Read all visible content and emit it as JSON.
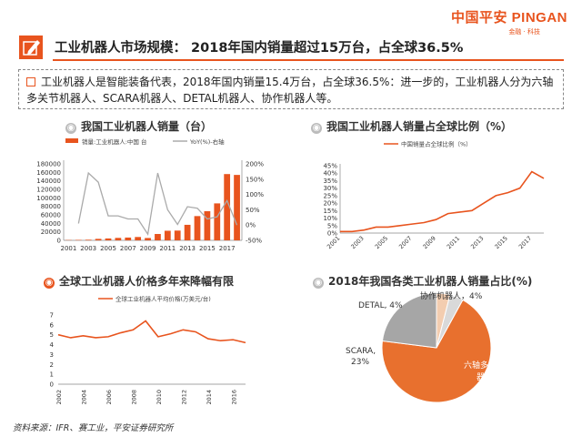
{
  "logo": {
    "main": "中国平安 PINGAN",
    "sub": "金融 · 科技"
  },
  "header": {
    "title": "工业机器人市场规模：  2018年国内销量超过15万台，占全球36.5%"
  },
  "summary": "工业机器人是智能装备代表，2018年国内销量15.4万台，占全球36.5%：进一步的，工业机器人分为六轴多关节机器人、SCARA机器人、DETAL机器人、协作机器人等。",
  "sections": {
    "domestic_sales": "我国工业机器人销量（台）",
    "global_share": "我国工业机器人销量占全球比例（%）",
    "price": "全球工业机器人价格多年来降幅有限",
    "category_share": "2018年我国各类工业机器人销量占比(%)"
  },
  "source": "资料来源：IFR、赛工业，平安证券研究所",
  "colors": {
    "accent": "#e8541e",
    "gray": "#aaaaaa",
    "pie_light": "#f3cdb0"
  },
  "chart_data": [
    {
      "type": "bar",
      "legend": [
        "销量:工业机器人:中国  台",
        "YoY(%)-右轴"
      ],
      "x": [
        2001,
        2002,
        2003,
        2004,
        2005,
        2006,
        2007,
        2008,
        2009,
        2010,
        2011,
        2012,
        2013,
        2014,
        2015,
        2016,
        2017,
        2018
      ],
      "xticks": [
        "2001",
        "2003",
        "2005",
        "2007",
        "2009",
        "2011",
        "2013",
        "2015",
        "2017"
      ],
      "series": [
        {
          "name": "销量:工业机器人:中国  台",
          "axis": "left",
          "values": [
            680,
            1000,
            1450,
            3500,
            4460,
            5770,
            6580,
            7880,
            5530,
            14980,
            22580,
            22990,
            36560,
            57100,
            68600,
            87000,
            156000,
            154000
          ]
        },
        {
          "name": "YoY(%)-右轴",
          "axis": "right",
          "values": [
            null,
            5,
            170,
            140,
            30,
            30,
            20,
            20,
            -30,
            170,
            50,
            2,
            60,
            55,
            20,
            27,
            80,
            0
          ]
        }
      ],
      "ylim": [
        0,
        180000
      ],
      "yticks": [
        "0",
        "20000",
        "40000",
        "60000",
        "80000",
        "100000",
        "120000",
        "140000",
        "160000",
        "180000"
      ],
      "y2lim": [
        -50,
        200
      ],
      "y2ticks": [
        "-50%",
        "0%",
        "50%",
        "100%",
        "150%",
        "200%"
      ]
    },
    {
      "type": "line",
      "legend": [
        "中国销量占全球比例（%）"
      ],
      "x": [
        2001,
        2002,
        2003,
        2004,
        2005,
        2006,
        2007,
        2008,
        2009,
        2010,
        2011,
        2012,
        2013,
        2014,
        2015,
        2016,
        2017,
        2018
      ],
      "xticks": [
        "2001",
        "2003",
        "2005",
        "2007",
        "2009",
        "2011",
        "2013",
        "2015",
        "2017"
      ],
      "series": [
        {
          "name": "中国销量占全球比例（%）",
          "values": [
            1,
            1,
            2,
            4,
            4,
            5,
            6,
            7,
            9,
            13,
            14,
            15,
            20,
            25,
            27,
            30,
            41,
            36.5
          ]
        }
      ],
      "ylim": [
        0,
        45
      ],
      "yticks": [
        "0%",
        "5%",
        "10%",
        "15%",
        "20%",
        "25%",
        "30%",
        "35%",
        "40%",
        "45%"
      ]
    },
    {
      "type": "line",
      "legend": [
        "全球工业机器人平均价格(万美元/台)"
      ],
      "x": [
        2002,
        2003,
        2004,
        2005,
        2006,
        2007,
        2008,
        2009,
        2010,
        2011,
        2012,
        2013,
        2014,
        2015,
        2016,
        2017
      ],
      "xticks": [
        "2002",
        "2004",
        "2006",
        "2008",
        "2010",
        "2012",
        "2014",
        "2016"
      ],
      "series": [
        {
          "name": "全球工业机器人平均价格(万美元/台)",
          "values": [
            5.0,
            4.7,
            4.9,
            4.7,
            4.8,
            5.2,
            5.5,
            6.4,
            4.8,
            5.1,
            5.5,
            5.3,
            4.6,
            4.4,
            4.5,
            4.2
          ]
        }
      ],
      "ylim": [
        0,
        7
      ],
      "yticks": [
        "0",
        "1",
        "2",
        "3",
        "4",
        "5",
        "6",
        "7"
      ]
    },
    {
      "type": "pie",
      "slices": [
        {
          "label": "六轴多关节机器人、69%",
          "value": 69,
          "color": "#e8702e"
        },
        {
          "label": "SCARA,23%",
          "value": 23,
          "color": "#a6a6a6"
        },
        {
          "label": "DETAL, 4%",
          "value": 4,
          "color": "#f3cdb0"
        },
        {
          "label": "协作机器人，4%",
          "value": 4,
          "color": "#d9d9d9"
        }
      ]
    }
  ]
}
